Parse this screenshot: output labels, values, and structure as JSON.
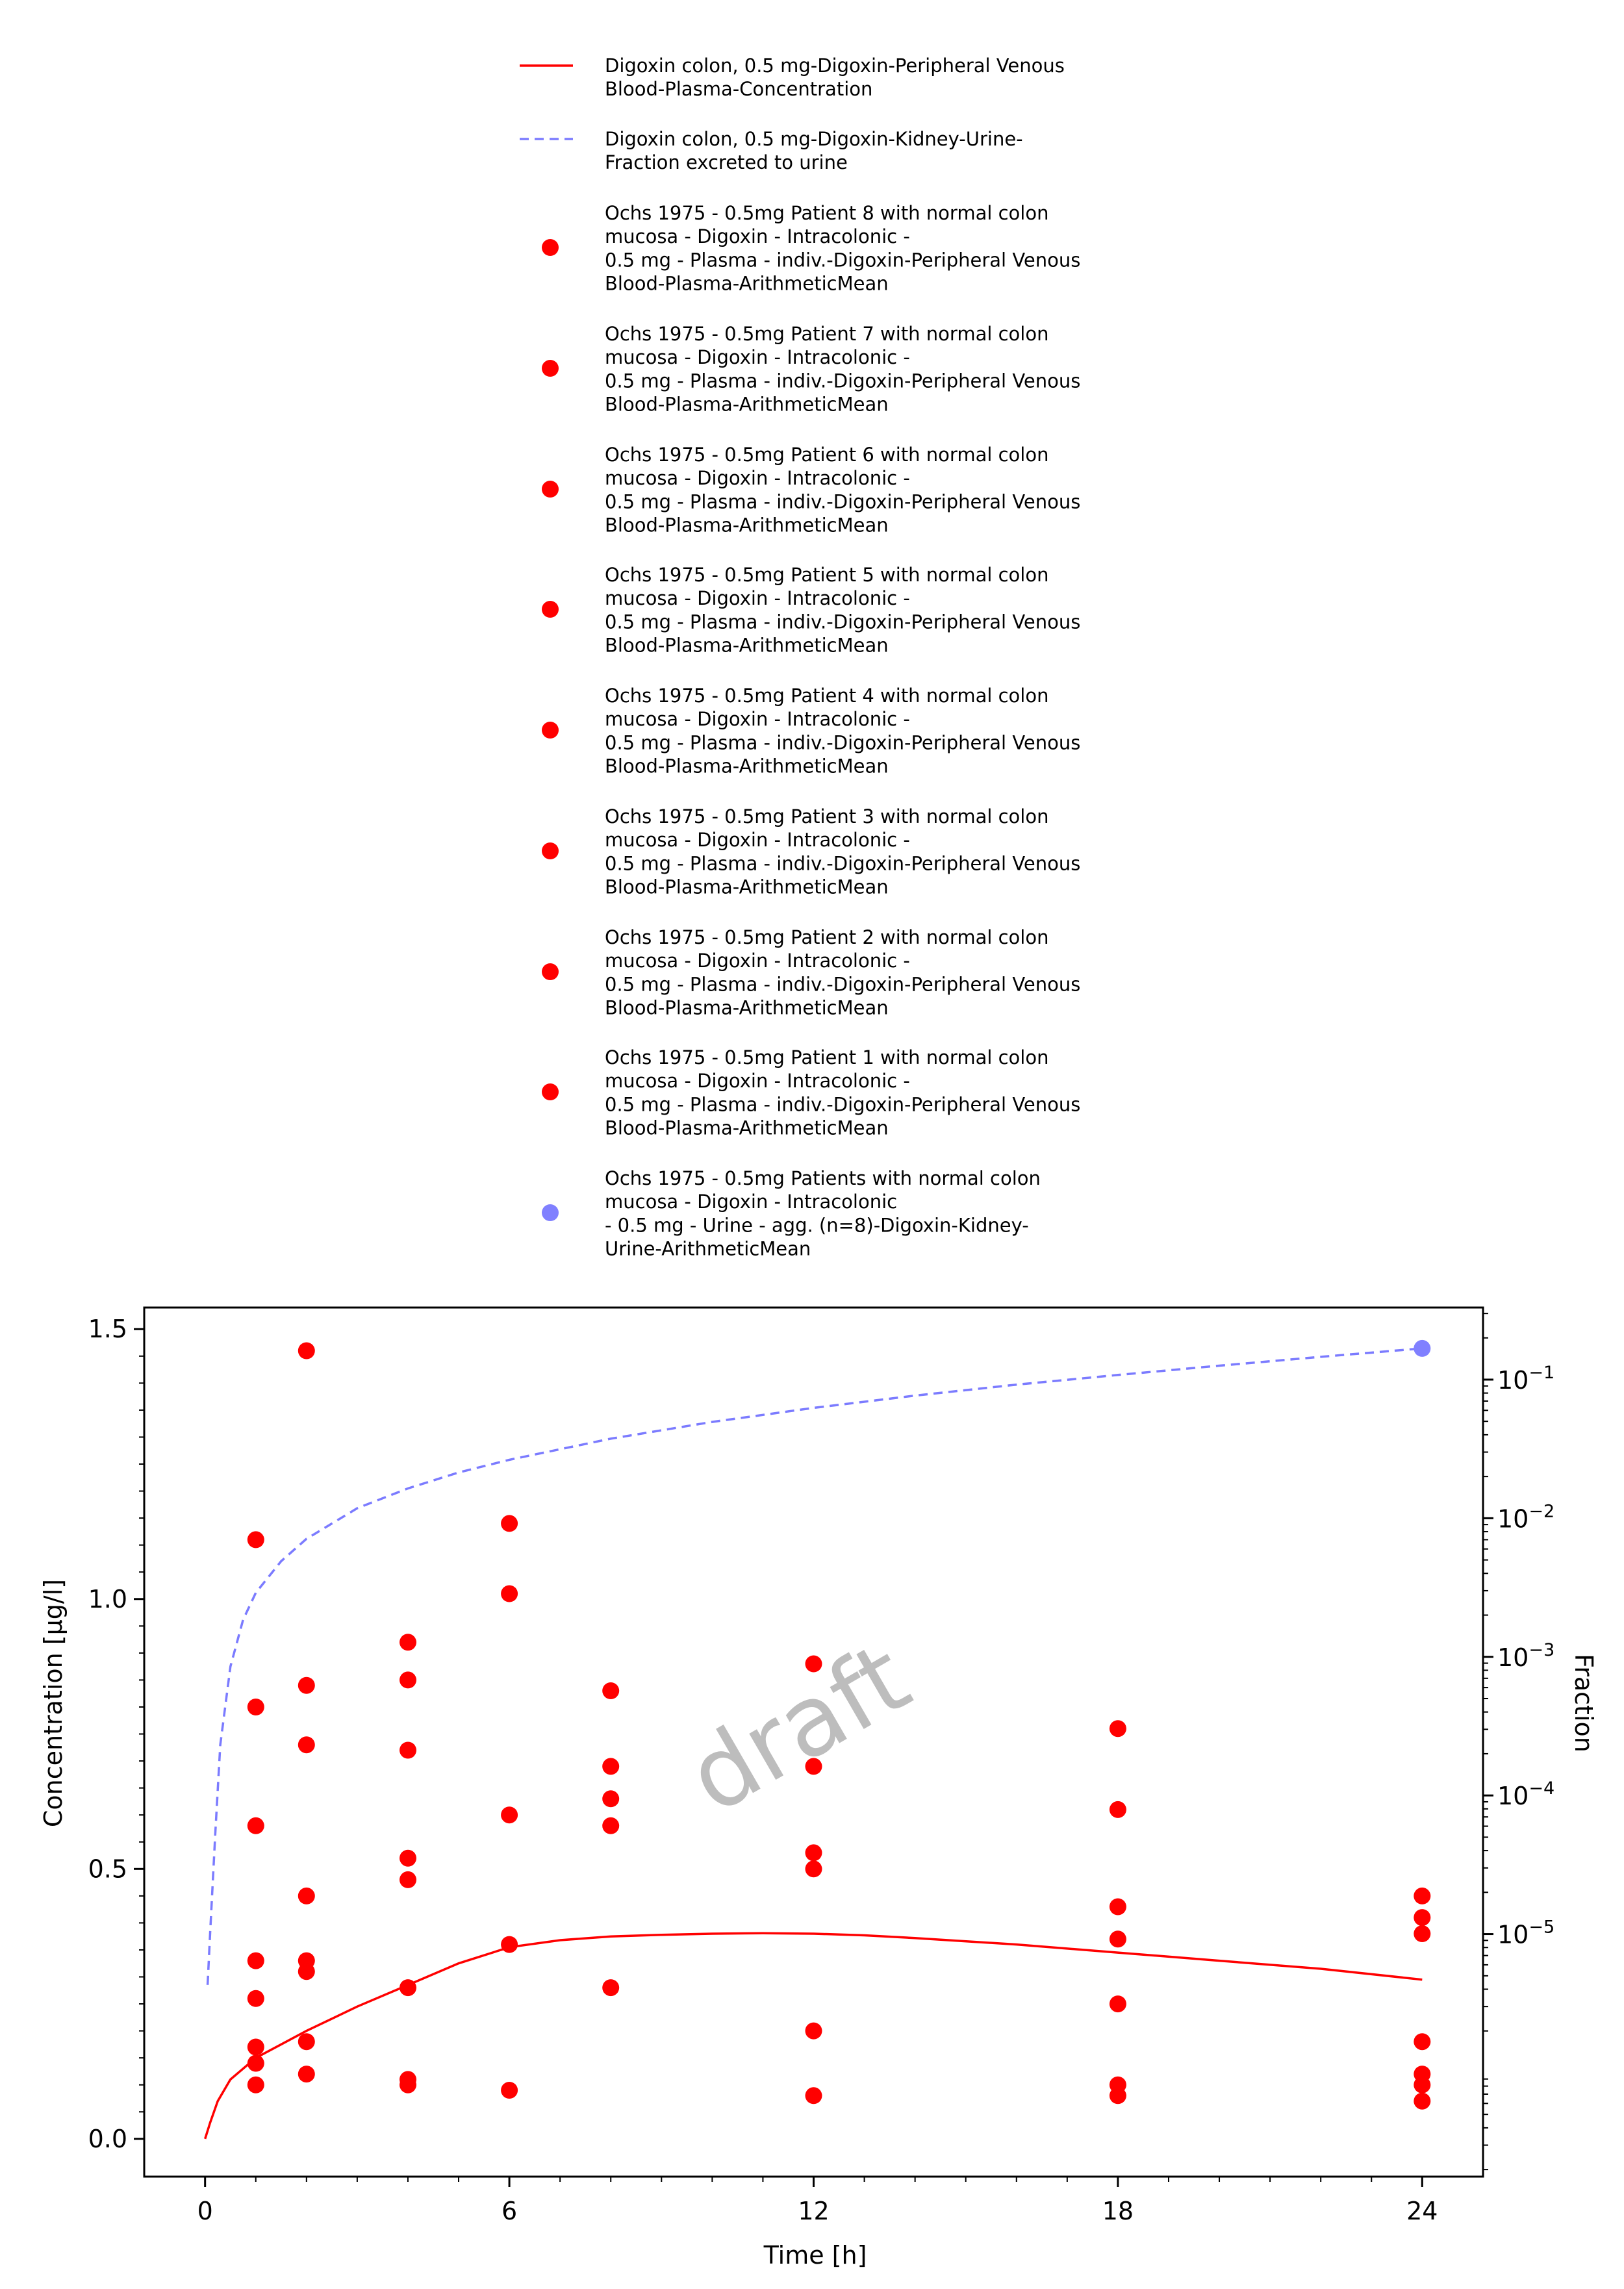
{
  "chart_data": {
    "type": "scatter",
    "watermark": "draft",
    "xlabel": "Time [h]",
    "ylabel": "Concentration [µg/l]",
    "y2label": "Fraction",
    "xlim": [
      -1.2,
      25.2
    ],
    "ylim": [
      -0.07,
      1.54
    ],
    "y2scale": "log",
    "y2lim_log10": [
      -6.75,
      -0.48
    ],
    "x_ticks": [
      0,
      6,
      12,
      18,
      24
    ],
    "x_tick_labels": [
      "0",
      "6",
      "12",
      "18",
      "24"
    ],
    "y_ticks": [
      0.0,
      0.5,
      1.0,
      1.5
    ],
    "y_tick_labels": [
      "0.0",
      "0.5",
      "1.0",
      "1.5"
    ],
    "y2_ticks": [
      -5,
      -4,
      -3,
      -2,
      -1
    ],
    "y2_tick_labels": [
      "10",
      "10",
      "10",
      "10",
      "10"
    ],
    "y2_tick_exponents": [
      "−5",
      "−4",
      "−3",
      "−2",
      "−1"
    ],
    "grid": false,
    "legend_position": "top",
    "colors": {
      "simulation_plasma": "#ff0000",
      "simulation_urine": "#7b7bff",
      "observed_plasma": "#ff0000",
      "observed_urine": "#8080ff"
    },
    "series": [
      {
        "name": "Digoxin colon, 0.5 mg-Digoxin-Peripheral Venous Blood-Plasma-Concentration",
        "legend_lines": [
          "Digoxin colon, 0.5 mg-Digoxin-Peripheral Venous",
          "Blood-Plasma-Concentration"
        ],
        "kind": "line",
        "style": "solid",
        "axis": "left",
        "color": "#ff0000",
        "x": [
          0,
          0.1,
          0.25,
          0.5,
          0.75,
          1,
          1.5,
          2,
          3,
          4,
          5,
          6,
          7,
          8,
          9,
          10,
          11,
          12,
          13,
          14,
          16,
          18,
          20,
          22,
          24
        ],
        "y": [
          0,
          0.03,
          0.07,
          0.11,
          0.13,
          0.15,
          0.175,
          0.2,
          0.245,
          0.285,
          0.325,
          0.355,
          0.368,
          0.375,
          0.378,
          0.38,
          0.381,
          0.38,
          0.377,
          0.372,
          0.36,
          0.345,
          0.33,
          0.315,
          0.295
        ]
      },
      {
        "name": "Digoxin colon, 0.5 mg-Digoxin-Kidney-Urine-Fraction excreted to urine",
        "legend_lines": [
          "Digoxin colon, 0.5 mg-Digoxin-Kidney-Urine-",
          "Fraction excreted to urine"
        ],
        "kind": "line",
        "style": "dashed",
        "axis": "right",
        "color": "#7b7bff",
        "x": [
          0.05,
          0.1,
          0.2,
          0.3,
          0.5,
          0.75,
          1,
          1.5,
          2,
          3,
          4,
          5,
          6,
          8,
          10,
          12,
          14,
          16,
          18,
          20,
          22,
          24
        ],
        "y": [
          4.3e-06,
          1.02e-05,
          5.2e-05,
          0.000232,
          0.00085,
          0.00185,
          0.0029,
          0.0049,
          0.0071,
          0.0118,
          0.0164,
          0.0214,
          0.0264,
          0.0375,
          0.0495,
          0.0625,
          0.0767,
          0.092,
          0.108,
          0.126,
          0.146,
          0.168
        ]
      },
      {
        "name": "Ochs 1975 - 0.5mg Patient 8 with normal colon mucosa - Digoxin - Intracolonic - 0.5 mg - Plasma - indiv.-Digoxin-Peripheral Venous Blood-Plasma-ArithmeticMean",
        "legend_lines": [
          "Ochs 1975 - 0.5mg Patient 8 with normal colon",
          "mucosa - Digoxin - Intracolonic -",
          "0.5 mg - Plasma - indiv.-Digoxin-Peripheral Venous",
          "Blood-Plasma-ArithmeticMean"
        ],
        "kind": "points",
        "axis": "left",
        "color": "#ff0000",
        "x": [
          1,
          2,
          4,
          6,
          8,
          12,
          18,
          24
        ],
        "y": [
          1.11,
          1.46,
          0.92,
          1.14,
          0.83,
          0.88,
          0.76,
          0.45
        ]
      },
      {
        "name": "Ochs 1975 - 0.5mg Patient 7 with normal colon mucosa - Digoxin - Intracolonic - 0.5 mg - Plasma - indiv.-Digoxin-Peripheral Venous Blood-Plasma-ArithmeticMean",
        "legend_lines": [
          "Ochs 1975 - 0.5mg Patient 7 with normal colon",
          "mucosa - Digoxin - Intracolonic -",
          "0.5 mg - Plasma - indiv.-Digoxin-Peripheral Venous",
          "Blood-Plasma-ArithmeticMean"
        ],
        "kind": "points",
        "axis": "left",
        "color": "#ff0000",
        "x": [
          1,
          2,
          4,
          6,
          8,
          12,
          18,
          24
        ],
        "y": [
          0.8,
          0.84,
          0.85,
          1.01,
          0.69,
          0.69,
          0.61,
          0.41
        ]
      },
      {
        "name": "Ochs 1975 - 0.5mg Patient 6 with normal colon mucosa - Digoxin - Intracolonic - 0.5 mg - Plasma - indiv.-Digoxin-Peripheral Venous Blood-Plasma-ArithmeticMean",
        "legend_lines": [
          "Ochs 1975 - 0.5mg Patient 6 with normal colon",
          "mucosa - Digoxin - Intracolonic -",
          "0.5 mg - Plasma - indiv.-Digoxin-Peripheral Venous",
          "Blood-Plasma-ArithmeticMean"
        ],
        "kind": "points",
        "axis": "left",
        "color": "#ff0000",
        "x": [
          1,
          2,
          4,
          6,
          8,
          12,
          18,
          24
        ],
        "y": [
          0.58,
          0.73,
          0.72,
          0.6,
          0.63,
          0.53,
          0.43,
          0.38
        ]
      },
      {
        "name": "Ochs 1975 - 0.5mg Patient 5 with normal colon mucosa - Digoxin - Intracolonic - 0.5 mg - Plasma - indiv.-Digoxin-Peripheral Venous Blood-Plasma-ArithmeticMean",
        "legend_lines": [
          "Ochs 1975 - 0.5mg Patient 5 with normal colon",
          "mucosa - Digoxin - Intracolonic -",
          "0.5 mg - Plasma - indiv.-Digoxin-Peripheral Venous",
          "Blood-Plasma-ArithmeticMean"
        ],
        "kind": "points",
        "axis": "left",
        "color": "#ff0000",
        "x": [
          1,
          2,
          4,
          6,
          8,
          12,
          18,
          24
        ],
        "y": [
          0.33,
          0.45,
          0.52,
          0.36,
          0.58,
          0.5,
          0.37,
          0.18
        ]
      },
      {
        "name": "Ochs 1975 - 0.5mg Patient 4 with normal colon mucosa - Digoxin - Intracolonic - 0.5 mg - Plasma - indiv.-Digoxin-Peripheral Venous Blood-Plasma-ArithmeticMean",
        "legend_lines": [
          "Ochs 1975 - 0.5mg Patient 4 with normal colon",
          "mucosa - Digoxin - Intracolonic -",
          "0.5 mg - Plasma - indiv.-Digoxin-Peripheral Venous",
          "Blood-Plasma-ArithmeticMean"
        ],
        "kind": "points",
        "axis": "left",
        "color": "#ff0000",
        "x": [
          1,
          2,
          4,
          6,
          8,
          12,
          18,
          24
        ],
        "y": [
          0.26,
          0.33,
          0.48,
          0.09,
          0.28,
          0.2,
          0.25,
          0.12
        ]
      },
      {
        "name": "Ochs 1975 - 0.5mg Patient 3 with normal colon mucosa - Digoxin - Intracolonic - 0.5 mg - Plasma - indiv.-Digoxin-Peripheral Venous Blood-Plasma-ArithmeticMean",
        "legend_lines": [
          "Ochs 1975 - 0.5mg Patient 3 with normal colon",
          "mucosa - Digoxin - Intracolonic -",
          "0.5 mg - Plasma - indiv.-Digoxin-Peripheral Venous",
          "Blood-Plasma-ArithmeticMean"
        ],
        "kind": "points",
        "axis": "left",
        "color": "#ff0000",
        "x": [
          1,
          2,
          4,
          12,
          18,
          24
        ],
        "y": [
          0.17,
          0.31,
          0.28,
          0.08,
          0.1,
          0.1
        ]
      },
      {
        "name": "Ochs 1975 - 0.5mg Patient 2 with normal colon mucosa - Digoxin - Intracolonic - 0.5 mg - Plasma - indiv.-Digoxin-Peripheral Venous Blood-Plasma-ArithmeticMean",
        "legend_lines": [
          "Ochs 1975 - 0.5mg Patient 2 with normal colon",
          "mucosa - Digoxin - Intracolonic -",
          "0.5 mg - Plasma - indiv.-Digoxin-Peripheral Venous",
          "Blood-Plasma-ArithmeticMean"
        ],
        "kind": "points",
        "axis": "left",
        "color": "#ff0000",
        "x": [
          1,
          2,
          4,
          18,
          24
        ],
        "y": [
          0.14,
          0.18,
          0.11,
          0.08,
          0.07
        ]
      },
      {
        "name": "Ochs 1975 - 0.5mg Patient 1 with normal colon mucosa - Digoxin - Intracolonic - 0.5 mg - Plasma - indiv.-Digoxin-Peripheral Venous Blood-Plasma-ArithmeticMean",
        "legend_lines": [
          "Ochs 1975 - 0.5mg Patient 1 with normal colon",
          "mucosa - Digoxin - Intracolonic -",
          "0.5 mg - Plasma - indiv.-Digoxin-Peripheral Venous",
          "Blood-Plasma-ArithmeticMean"
        ],
        "kind": "points",
        "axis": "left",
        "color": "#ff0000",
        "x": [
          1,
          2,
          4
        ],
        "y": [
          0.1,
          0.12,
          0.1
        ]
      },
      {
        "name": "Ochs 1975 - 0.5mg Patients with normal colon mucosa - Digoxin - Intracolonic - 0.5 mg - Urine - agg. (n=8)-Digoxin-Kidney-Urine-ArithmeticMean",
        "legend_lines": [
          "Ochs 1975 - 0.5mg Patients with normal colon",
          "mucosa - Digoxin - Intracolonic",
          "- 0.5 mg - Urine - agg. (n=8)-Digoxin-Kidney-",
          "Urine-ArithmeticMean"
        ],
        "kind": "points",
        "axis": "right",
        "color": "#8080ff",
        "x": [
          24
        ],
        "y": [
          0.168
        ]
      }
    ]
  }
}
